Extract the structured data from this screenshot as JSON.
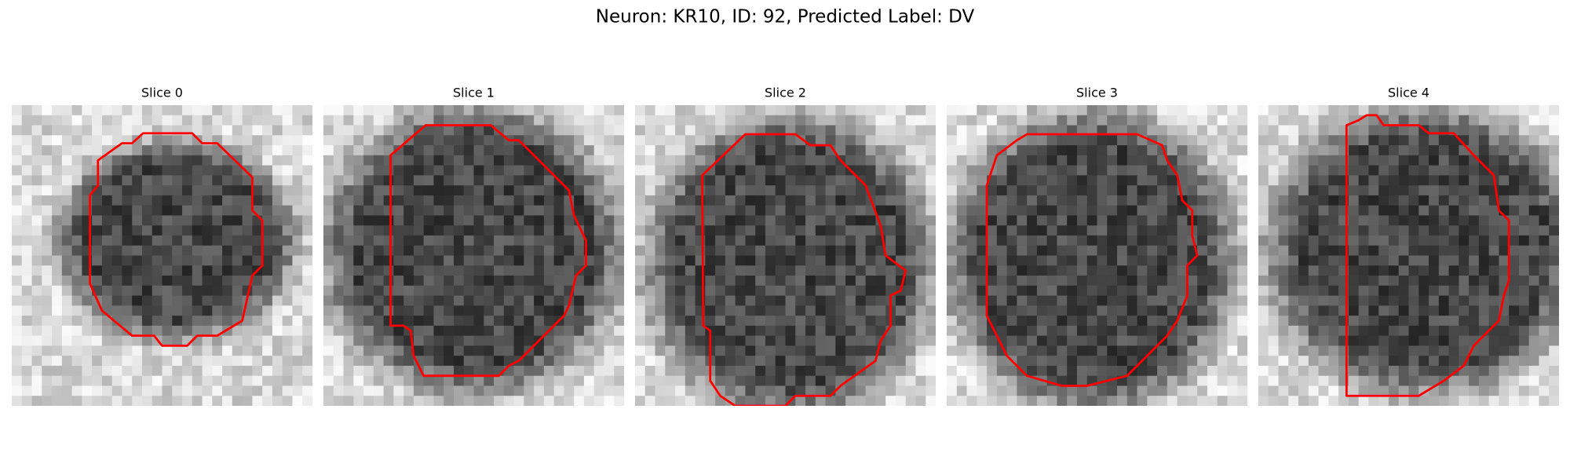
{
  "title": "Neuron: KR10, ID: 92, Predicted Label: DV",
  "panels": [
    {
      "title": "Slice 0"
    },
    {
      "title": "Slice 1"
    },
    {
      "title": "Slice 2"
    },
    {
      "title": "Slice 3"
    },
    {
      "title": "Slice 4"
    }
  ]
}
